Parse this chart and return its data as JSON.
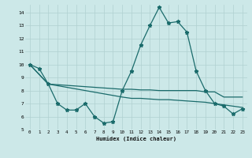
{
  "xlabel": "Humidex (Indice chaleur)",
  "bg_color": "#cce8e8",
  "grid_color": "#b0d0d0",
  "line_color": "#1a6b6b",
  "xlim": [
    -0.5,
    23.5
  ],
  "ylim": [
    5,
    14.6
  ],
  "yticks": [
    5,
    6,
    7,
    8,
    9,
    10,
    11,
    12,
    13,
    14
  ],
  "xticks": [
    0,
    1,
    2,
    3,
    4,
    5,
    6,
    7,
    8,
    9,
    10,
    11,
    12,
    13,
    14,
    15,
    16,
    17,
    18,
    19,
    20,
    21,
    22,
    23
  ],
  "line1_x": [
    0,
    1,
    2,
    3,
    4,
    5,
    6,
    7,
    8,
    9,
    10,
    11,
    12,
    13,
    14,
    15,
    16,
    17,
    18,
    19,
    20,
    21,
    22,
    23
  ],
  "line1_y": [
    10.0,
    9.7,
    8.5,
    7.0,
    6.5,
    6.5,
    7.0,
    6.0,
    5.5,
    5.6,
    8.0,
    9.5,
    11.5,
    13.0,
    14.4,
    13.2,
    13.3,
    12.5,
    9.5,
    8.0,
    7.0,
    6.8,
    6.2,
    6.6
  ],
  "line2_x": [
    0,
    2,
    10,
    11,
    12,
    13,
    14,
    15,
    16,
    17,
    18,
    19,
    20,
    21,
    22,
    23
  ],
  "line2_y": [
    10.0,
    8.5,
    8.1,
    8.1,
    8.05,
    8.05,
    8.0,
    8.0,
    8.0,
    8.0,
    8.0,
    7.9,
    7.9,
    7.5,
    7.5,
    7.5
  ],
  "line3_x": [
    0,
    2,
    10,
    11,
    12,
    13,
    14,
    15,
    16,
    17,
    18,
    19,
    20,
    21,
    22,
    23
  ],
  "line3_y": [
    10.0,
    8.5,
    7.5,
    7.4,
    7.4,
    7.35,
    7.3,
    7.3,
    7.25,
    7.2,
    7.15,
    7.1,
    7.0,
    6.9,
    6.8,
    6.7
  ]
}
